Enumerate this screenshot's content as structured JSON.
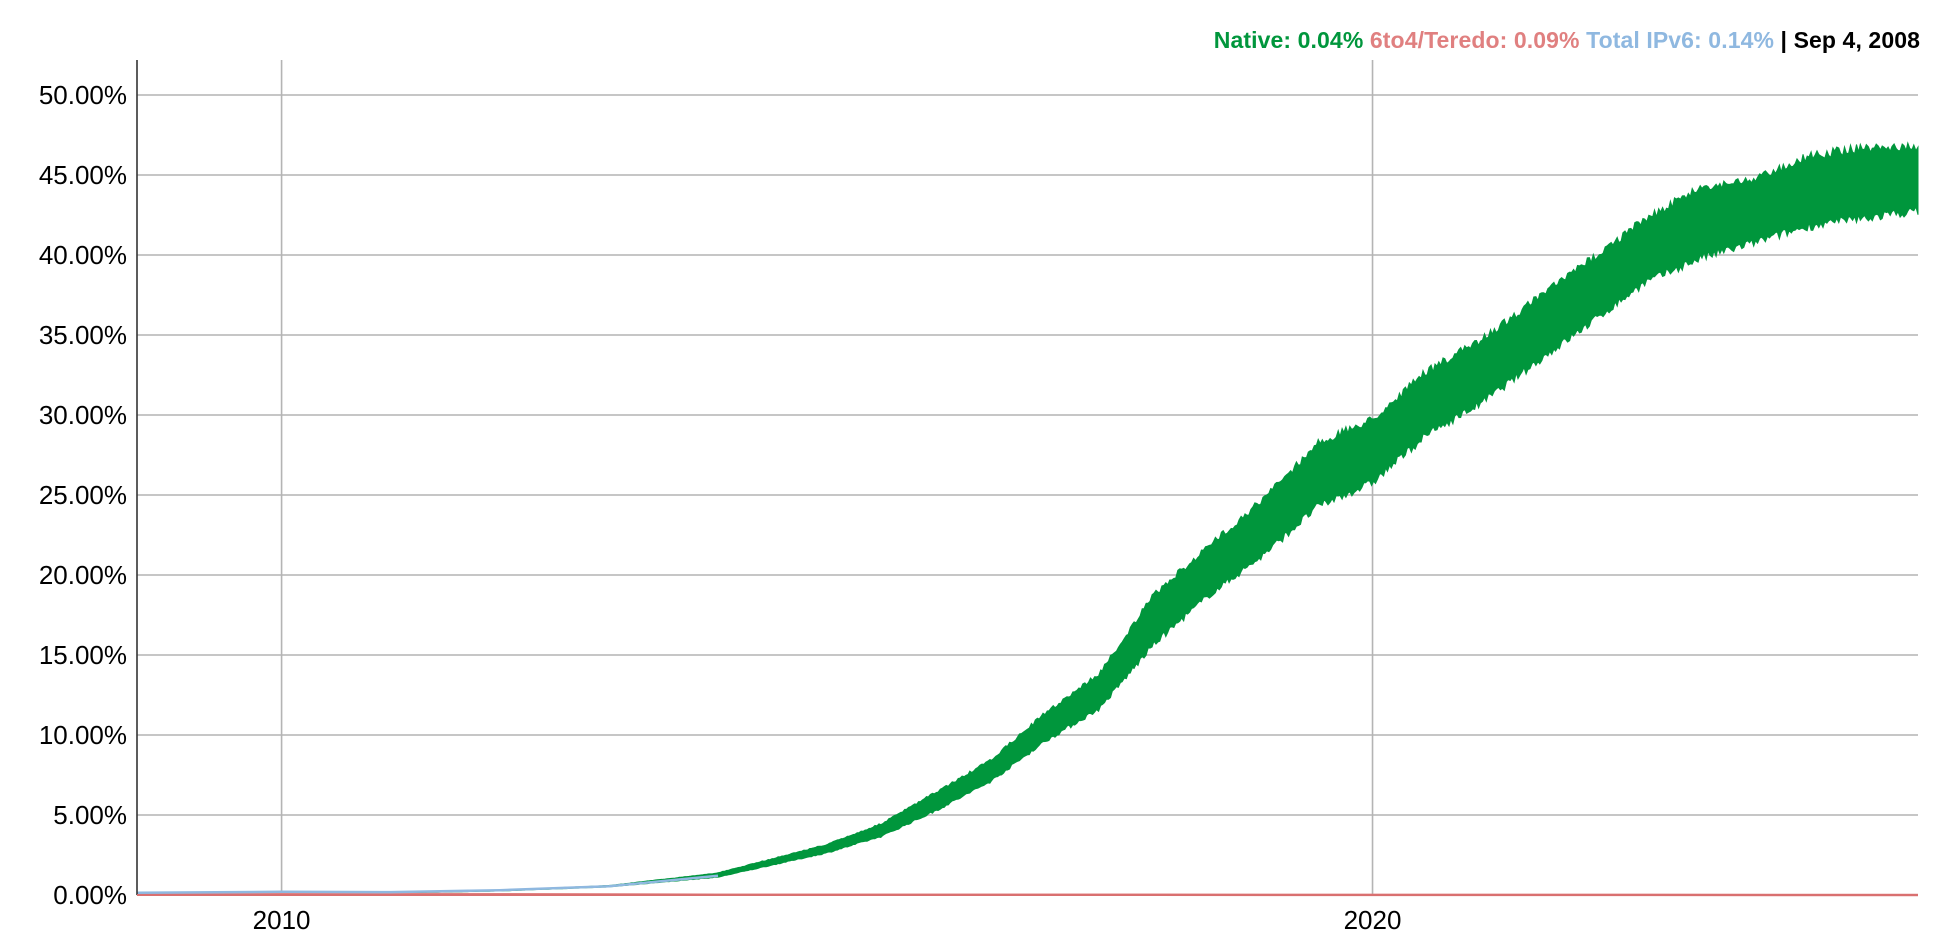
{
  "legend": {
    "native": "Native: 0.04%",
    "teredo": "6to4/Teredo: 0.09%",
    "total": "Total IPv6: 0.14%",
    "separator": "|",
    "date": "Sep 4, 2008"
  },
  "chart_data": {
    "type": "area",
    "title": "",
    "xlabel": "",
    "ylabel": "",
    "xlim": [
      "2008-09-04",
      "2024-12-31"
    ],
    "ylim": [
      0,
      50
    ],
    "y_ticks": [
      "0.00%",
      "5.00%",
      "10.00%",
      "15.00%",
      "20.00%",
      "25.00%",
      "30.00%",
      "35.00%",
      "40.00%",
      "45.00%",
      "50.00%"
    ],
    "x_ticks": [
      "2010",
      "2020"
    ],
    "grid": true,
    "legend_position": "top-right",
    "series": [
      {
        "name": "Native",
        "color": "#00963c",
        "upper": [
          [
            "2008-09-04",
            0.04
          ],
          [
            "2010-01-01",
            0.1
          ],
          [
            "2011-01-01",
            0.15
          ],
          [
            "2012-01-01",
            0.3
          ],
          [
            "2013-01-01",
            0.6
          ],
          [
            "2014-01-01",
            1.4
          ],
          [
            "2015-01-01",
            3.2
          ],
          [
            "2015-07-01",
            4.5
          ],
          [
            "2016-01-01",
            6.5
          ],
          [
            "2016-07-01",
            8.5
          ],
          [
            "2017-01-01",
            11.5
          ],
          [
            "2017-07-01",
            14.0
          ],
          [
            "2018-01-01",
            19.0
          ],
          [
            "2018-07-01",
            22.0
          ],
          [
            "2019-01-01",
            25.0
          ],
          [
            "2019-07-01",
            28.5
          ],
          [
            "2020-01-01",
            30.0
          ],
          [
            "2020-07-01",
            33.0
          ],
          [
            "2021-01-01",
            35.0
          ],
          [
            "2021-07-01",
            37.5
          ],
          [
            "2022-01-01",
            40.0
          ],
          [
            "2022-07-01",
            42.5
          ],
          [
            "2023-01-01",
            44.5
          ],
          [
            "2023-07-01",
            45.0
          ],
          [
            "2024-01-01",
            46.5
          ],
          [
            "2024-07-01",
            47.0
          ],
          [
            "2024-12-31",
            47.0
          ]
        ],
        "lower": [
          [
            "2008-09-04",
            0.02
          ],
          [
            "2010-01-01",
            0.08
          ],
          [
            "2011-01-01",
            0.12
          ],
          [
            "2012-01-01",
            0.25
          ],
          [
            "2013-01-01",
            0.5
          ],
          [
            "2014-01-01",
            1.1
          ],
          [
            "2015-01-01",
            2.6
          ],
          [
            "2015-07-01",
            3.6
          ],
          [
            "2016-01-01",
            5.2
          ],
          [
            "2016-07-01",
            7.0
          ],
          [
            "2017-01-01",
            9.5
          ],
          [
            "2017-07-01",
            11.5
          ],
          [
            "2018-01-01",
            15.5
          ],
          [
            "2018-07-01",
            18.5
          ],
          [
            "2019-01-01",
            21.0
          ],
          [
            "2019-07-01",
            24.0
          ],
          [
            "2020-01-01",
            25.5
          ],
          [
            "2020-07-01",
            28.5
          ],
          [
            "2021-01-01",
            30.5
          ],
          [
            "2021-07-01",
            33.0
          ],
          [
            "2022-01-01",
            35.5
          ],
          [
            "2022-07-01",
            38.0
          ],
          [
            "2023-01-01",
            39.5
          ],
          [
            "2023-07-01",
            40.5
          ],
          [
            "2024-01-01",
            41.5
          ],
          [
            "2024-07-01",
            42.0
          ],
          [
            "2024-12-31",
            42.5
          ]
        ]
      },
      {
        "name": "6to4/Teredo",
        "color": "#e08080",
        "values": [
          [
            "2008-09-04",
            0.09
          ],
          [
            "2010-01-01",
            0.08
          ],
          [
            "2012-01-01",
            0.05
          ],
          [
            "2014-01-01",
            0.02
          ],
          [
            "2018-01-01",
            0.01
          ],
          [
            "2024-12-31",
            0.0
          ]
        ]
      },
      {
        "name": "Total IPv6",
        "color": "#8fb8e0",
        "values": [
          [
            "2008-09-04",
            0.14
          ],
          [
            "2010-01-01",
            0.2
          ],
          [
            "2011-01-01",
            0.18
          ],
          [
            "2012-01-01",
            0.3
          ],
          [
            "2013-01-01",
            0.55
          ],
          [
            "2014-01-01",
            1.2
          ]
        ]
      }
    ]
  }
}
